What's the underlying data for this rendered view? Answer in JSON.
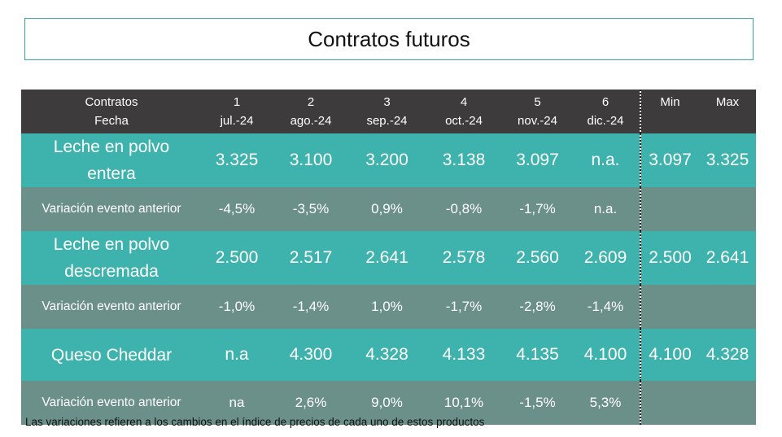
{
  "title": "Contratos futuros",
  "header": {
    "label_line1": "Contratos",
    "label_line2": "Fecha",
    "columns": [
      {
        "num": "1",
        "date": "jul.-24"
      },
      {
        "num": "2",
        "date": "ago.-24"
      },
      {
        "num": "3",
        "date": "sep.-24"
      },
      {
        "num": "4",
        "date": "oct.-24"
      },
      {
        "num": "5",
        "date": "nov.-24"
      },
      {
        "num": "6",
        "date": "dic.-24"
      }
    ],
    "min": "Min",
    "max": "Max"
  },
  "rows": [
    {
      "product": [
        "Leche en polvo",
        "entera"
      ],
      "values": [
        "3.325",
        "3.100",
        "3.200",
        "3.138",
        "3.097",
        "n.a."
      ],
      "min": "3.097",
      "max": "3.325",
      "variation_label": "Variación evento anterior",
      "variations": [
        "-4,5%",
        "-3,5%",
        "0,9%",
        "-0,8%",
        "-1,7%",
        "n.a."
      ]
    },
    {
      "product": [
        "Leche en polvo",
        "descremada"
      ],
      "values": [
        "2.500",
        "2.517",
        "2.641",
        "2.578",
        "2.560",
        "2.609"
      ],
      "min": "2.500",
      "max": "2.641",
      "variation_label": "Variación evento anterior",
      "variations": [
        "-1,0%",
        "-1,4%",
        "1,0%",
        "-1,7%",
        "-2,8%",
        "-1,4%"
      ]
    },
    {
      "product": [
        "Queso Cheddar"
      ],
      "values": [
        "n.a",
        "4.300",
        "4.328",
        "4.133",
        "4.135",
        "4.100"
      ],
      "min": "4.100",
      "max": "4.328",
      "variation_label": "Variación evento anterior",
      "variations": [
        "na",
        "2,6%",
        "9,0%",
        "10,1%",
        "-1,5%",
        "5,3%"
      ]
    }
  ],
  "footnote": "Las variaciones refieren a los cambios en el índice de precios de cada uno de estos productos",
  "colors": {
    "header_bg": "#3d3b3b",
    "product_row_bg": "#3eb3ad",
    "variation_row_bg": "#6b8f89",
    "title_border": "#3aa6a0"
  }
}
